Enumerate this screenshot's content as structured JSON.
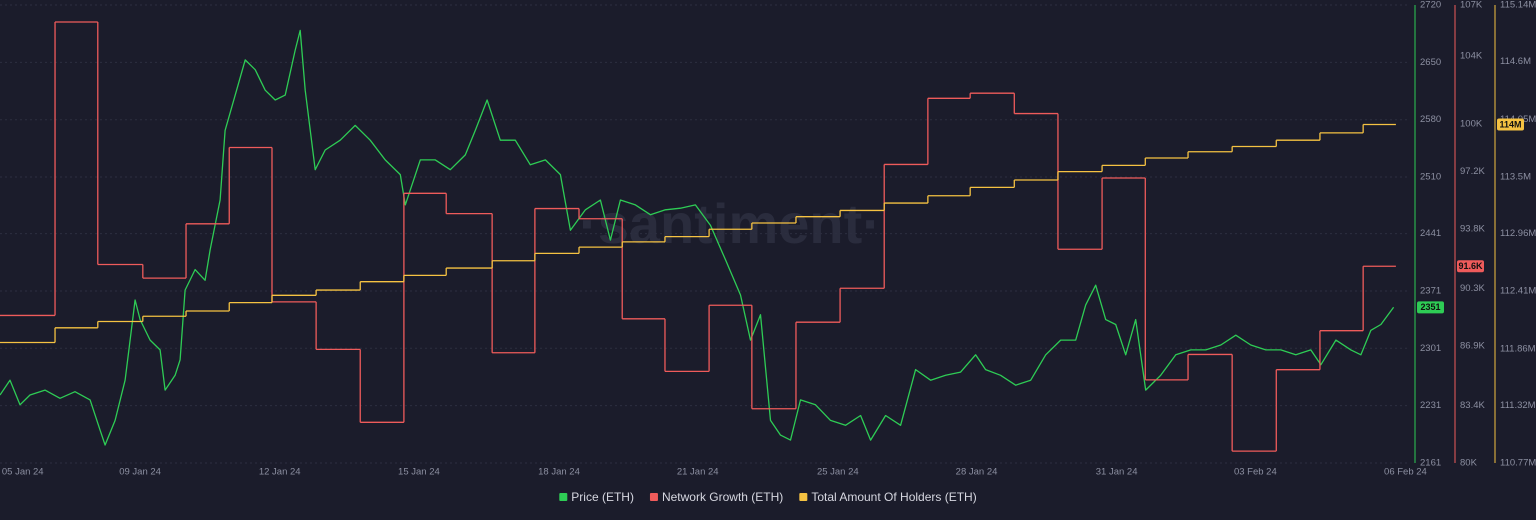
{
  "chart_data": {
    "type": "line",
    "watermark": "·santiment·",
    "background": "#1b1c2b",
    "grid": true,
    "legend": "bottom",
    "xlim": [
      0,
      31
    ],
    "xticks": [
      {
        "value": 0.5,
        "label": "05 Jan 24"
      },
      {
        "value": 3.08,
        "label": "09 Jan 24"
      },
      {
        "value": 6.15,
        "label": "12 Jan 24"
      },
      {
        "value": 9.21,
        "label": "15 Jan 24"
      },
      {
        "value": 12.29,
        "label": "18 Jan 24"
      },
      {
        "value": 15.34,
        "label": "21 Jan 24"
      },
      {
        "value": 18.42,
        "label": "25 Jan 24"
      },
      {
        "value": 21.47,
        "label": "28 Jan 24"
      },
      {
        "value": 24.55,
        "label": "31 Jan 24"
      },
      {
        "value": 27.6,
        "label": "03 Feb 24"
      },
      {
        "value": 30.9,
        "label": "06 Feb 24"
      }
    ],
    "ylim": [
      2161,
      2720
    ],
    "yticks": [
      2161,
      2231,
      2301,
      2371,
      2441,
      2510,
      2580,
      2650,
      2720
    ],
    "y2lim": [
      80000,
      107000
    ],
    "y2ticks": [
      {
        "value": 80000,
        "label": "80K"
      },
      {
        "value": 83400,
        "label": "83.4K"
      },
      {
        "value": 86900,
        "label": "86.9K"
      },
      {
        "value": 90300,
        "label": "90.3K"
      },
      {
        "value": 93800,
        "label": "93.8K"
      },
      {
        "value": 97200,
        "label": "97.2K"
      },
      {
        "value": 100000,
        "label": "100K"
      },
      {
        "value": 104000,
        "label": "104K"
      },
      {
        "value": 107000,
        "label": "107K"
      }
    ],
    "y3lim": [
      110770000,
      115140000
    ],
    "y3ticks": [
      {
        "value": 110770000,
        "label": "110.77M"
      },
      {
        "value": 111320000,
        "label": "111.32M"
      },
      {
        "value": 111860000,
        "label": "111.86M"
      },
      {
        "value": 112410000,
        "label": "112.41M"
      },
      {
        "value": 112960000,
        "label": "112.96M"
      },
      {
        "value": 113500000,
        "label": "113.5M"
      },
      {
        "value": 114050000,
        "label": "114.05M"
      },
      {
        "value": 114600000,
        "label": "114.6M"
      },
      {
        "value": 115140000,
        "label": "115.14M"
      }
    ],
    "series": [
      {
        "name": "Price (ETH)",
        "color": "#2ecc55",
        "axis": "y",
        "step": false,
        "last_value_label": "2351",
        "x": [
          0,
          0.22,
          0.44,
          0.66,
          0.99,
          1.32,
          1.65,
          1.98,
          2.2,
          2.31,
          2.53,
          2.75,
          2.97,
          3.08,
          3.3,
          3.52,
          3.63,
          3.85,
          3.96,
          4.07,
          4.29,
          4.51,
          4.62,
          4.84,
          4.95,
          5.17,
          5.39,
          5.61,
          5.83,
          6.05,
          6.27,
          6.49,
          6.6,
          6.71,
          6.93,
          7.15,
          7.48,
          7.81,
          8.14,
          8.47,
          8.8,
          8.91,
          9.24,
          9.57,
          9.9,
          10.23,
          10.45,
          10.71,
          11.0,
          11.33,
          11.66,
          11.99,
          12.32,
          12.54,
          12.87,
          13.2,
          13.42,
          13.64,
          13.97,
          14.3,
          14.63,
          14.96,
          15.29,
          15.62,
          15.95,
          16.28,
          16.5,
          16.72,
          16.94,
          17.16,
          17.38,
          17.6,
          17.93,
          18.26,
          18.59,
          18.92,
          19.14,
          19.47,
          19.8,
          20.13,
          20.46,
          20.79,
          21.12,
          21.45,
          21.67,
          22.0,
          22.33,
          22.66,
          22.99,
          23.32,
          23.65,
          23.87,
          24.09,
          24.31,
          24.53,
          24.75,
          24.97,
          25.19,
          25.52,
          25.85,
          26.18,
          26.51,
          26.84,
          27.17,
          27.5,
          27.83,
          28.16,
          28.49,
          28.82,
          29.04,
          29.37,
          29.7,
          29.92,
          30.14,
          30.36,
          30.64
        ],
        "values": [
          2244,
          2262,
          2232,
          2244,
          2250,
          2240,
          2248,
          2238,
          2201,
          2183,
          2213,
          2262,
          2360,
          2336,
          2311,
          2299,
          2250,
          2268,
          2287,
          2372,
          2397,
          2384,
          2421,
          2482,
          2567,
          2610,
          2653,
          2641,
          2616,
          2604,
          2610,
          2665,
          2689,
          2616,
          2519,
          2543,
          2555,
          2573,
          2555,
          2531,
          2513,
          2476,
          2531,
          2531,
          2519,
          2537,
          2567,
          2604,
          2555,
          2555,
          2525,
          2531,
          2513,
          2445,
          2470,
          2482,
          2433,
          2482,
          2476,
          2464,
          2470,
          2472,
          2476,
          2451,
          2409,
          2366,
          2311,
          2342,
          2213,
          2195,
          2189,
          2238,
          2232,
          2213,
          2207,
          2219,
          2189,
          2219,
          2207,
          2275,
          2262,
          2268,
          2272,
          2293,
          2275,
          2268,
          2256,
          2262,
          2293,
          2311,
          2311,
          2354,
          2378,
          2336,
          2330,
          2293,
          2336,
          2250,
          2268,
          2293,
          2299,
          2299,
          2305,
          2317,
          2305,
          2299,
          2299,
          2293,
          2299,
          2281,
          2311,
          2299,
          2293,
          2323,
          2330,
          2351
        ]
      },
      {
        "name": "Network Growth (ETH)",
        "color": "#ef5b5b",
        "axis": "y2",
        "step": true,
        "last_value_label": "91.6K",
        "x": [
          0,
          1.21,
          2.15,
          3.14,
          4.09,
          5.04,
          5.98,
          6.95,
          7.92,
          8.88,
          9.81,
          10.82,
          11.76,
          12.73,
          13.68,
          14.62,
          15.59,
          16.53,
          17.5,
          18.47,
          19.44,
          20.4,
          21.33,
          22.3,
          23.26,
          24.23,
          25.18,
          26.12,
          27.09,
          28.06,
          29.02,
          29.97,
          30.69
        ],
        "values": [
          88700,
          106000,
          91700,
          90900,
          94100,
          98600,
          89500,
          86700,
          82400,
          95900,
          94700,
          86500,
          95000,
          94400,
          88500,
          85400,
          89300,
          83200,
          88300,
          90300,
          97600,
          101500,
          101800,
          100600,
          92600,
          96800,
          84900,
          86400,
          80700,
          85500,
          87800,
          91600,
          91600
        ]
      },
      {
        "name": "Total Amount Of Holders (ETH)",
        "color": "#f5c242",
        "axis": "y3",
        "step": true,
        "last_value_label": "114M",
        "x": [
          0,
          1.21,
          2.15,
          3.14,
          4.09,
          5.04,
          5.98,
          6.95,
          7.92,
          8.88,
          9.81,
          10.82,
          11.76,
          12.73,
          13.68,
          14.62,
          15.59,
          16.53,
          17.5,
          18.47,
          19.44,
          20.4,
          21.33,
          22.3,
          23.26,
          24.23,
          25.18,
          26.12,
          27.09,
          28.06,
          29.02,
          29.97,
          30.69
        ],
        "values": [
          111920000,
          112060000,
          112120000,
          112170000,
          112220000,
          112300000,
          112370000,
          112420000,
          112500000,
          112560000,
          112630000,
          112700000,
          112770000,
          112830000,
          112880000,
          112930000,
          113000000,
          113060000,
          113120000,
          113180000,
          113250000,
          113320000,
          113400000,
          113470000,
          113550000,
          113610000,
          113680000,
          113740000,
          113790000,
          113850000,
          113920000,
          114000000,
          114000000
        ]
      }
    ]
  }
}
